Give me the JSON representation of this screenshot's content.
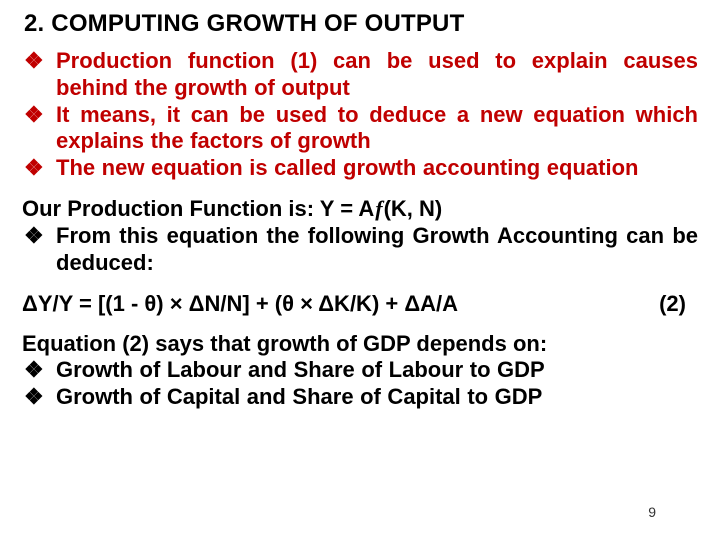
{
  "colors": {
    "title_color": "#000000",
    "bullet_red": "#c00000",
    "body_black": "#000000",
    "background": "#ffffff"
  },
  "typography": {
    "font_family": "Arial",
    "title_fontsize_pt": 20,
    "body_fontsize_pt": 18,
    "weight": "bold"
  },
  "title": "2. COMPUTING GROWTH OF OUTPUT",
  "bullets_intro": [
    "Production function (1) can be used to explain causes behind the growth of output",
    "It means, it can be used to deduce a new equation which explains the factors of growth",
    "The new equation is called growth accounting equation"
  ],
  "prod_fn_line_prefix": "Our Production Function is: Y = A",
  "prod_fn_line_suffix": "(K, N)",
  "bullets_mid": [
    "From this equation the following Growth Accounting can be deduced:"
  ],
  "equation": "ΔY/Y = [(1 - θ) × ΔN/N] + (θ × ΔK/K) + ΔA/A",
  "equation_number": "(2)",
  "bullets_conclusion_lead": "Equation (2) says that growth of GDP depends on:",
  "bullets_conclusion": [
    "Growth of Labour and Share of Labour to GDP",
    "Growth of Capital  and Share of Capital to GDP"
  ],
  "page_number": "9"
}
